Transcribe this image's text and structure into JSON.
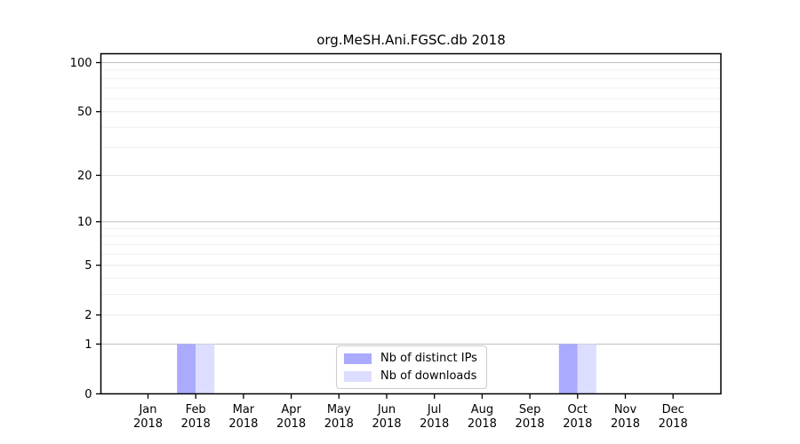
{
  "title": "org.MeSH.Ani.FGSC.db 2018",
  "chart_data": {
    "type": "bar",
    "title": "org.MeSH.Ani.FGSC.db 2018",
    "categories": [
      "Jan 2018",
      "Feb 2018",
      "Mar 2018",
      "Apr 2018",
      "May 2018",
      "Jun 2018",
      "Jul 2018",
      "Aug 2018",
      "Sep 2018",
      "Oct 2018",
      "Nov 2018",
      "Dec 2018"
    ],
    "series": [
      {
        "name": "Nb of distinct IPs",
        "color": "#aaaaff",
        "values": [
          0,
          1,
          0,
          0,
          0,
          0,
          0,
          0,
          0,
          1,
          0,
          0
        ]
      },
      {
        "name": "Nb of downloads",
        "color": "#ddddff",
        "values": [
          0,
          1,
          0,
          0,
          0,
          0,
          0,
          0,
          0,
          1,
          0,
          0
        ]
      }
    ],
    "yscale": "log1p",
    "ylim": [
      0,
      100
    ],
    "yticks": [
      0,
      1,
      2,
      5,
      10,
      20,
      50,
      100
    ],
    "minor_yticks": [
      3,
      4,
      6,
      7,
      8,
      9,
      30,
      40,
      60,
      70,
      80,
      90
    ],
    "decade_yticks": [
      1,
      10,
      100
    ],
    "xlabel": "",
    "ylabel": "",
    "grid": "horizontal",
    "legend_position": "bottom-center"
  },
  "legend": {
    "items": [
      {
        "label": "Nb of distinct IPs",
        "color": "#aaaaff"
      },
      {
        "label": "Nb of downloads",
        "color": "#ddddff"
      }
    ]
  },
  "colors": {
    "background": "#ffffff",
    "axis": "#000000",
    "grid_decade": "#c0c0c0",
    "grid_major": "#e8e8e8",
    "grid_minor": "#f0f0f0",
    "legend_border": "#cccccc"
  }
}
